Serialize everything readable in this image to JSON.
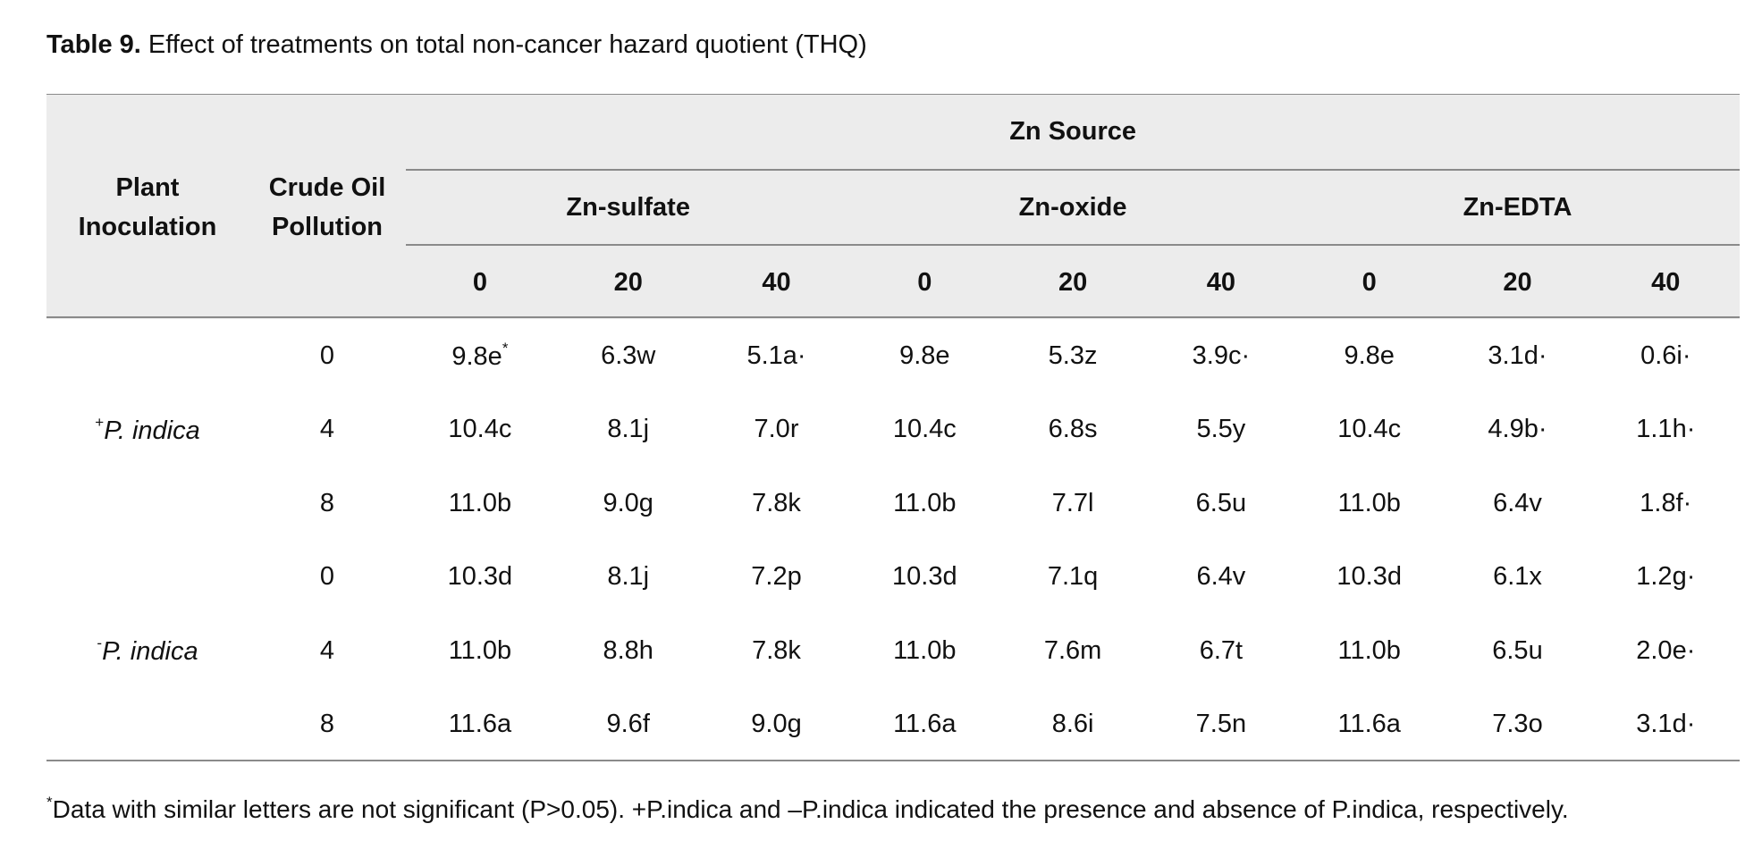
{
  "caption": {
    "label": "Table 9.",
    "text": "Effect of treatments on total non-cancer hazard quotient (THQ)"
  },
  "header": {
    "plant_inoculation": "Plant\nInoculation",
    "crude_oil_pollution": "Crude Oil\nPollution",
    "zn_source": "Zn Source",
    "sources": [
      "Zn-sulfate",
      "Zn-oxide",
      "Zn-EDTA"
    ],
    "levels": [
      "0",
      "20",
      "40",
      "0",
      "20",
      "40",
      "0",
      "20",
      "40"
    ]
  },
  "groups": [
    {
      "plant_sup": "+",
      "plant": "P. indica",
      "rows": [
        {
          "oil": "0",
          "values": [
            "9.8e",
            "6.3w",
            "5.1a·",
            "9.8e",
            "5.3z",
            "3.9c·",
            "9.8e",
            "3.1d·",
            "0.6i·"
          ],
          "first_sup": "*"
        },
        {
          "oil": "4",
          "values": [
            "10.4c",
            "8.1j",
            "7.0r",
            "10.4c",
            "6.8s",
            "5.5y",
            "10.4c",
            "4.9b·",
            "1.1h·"
          ]
        },
        {
          "oil": "8",
          "values": [
            "11.0b",
            "9.0g",
            "7.8k",
            "11.0b",
            "7.7l",
            "6.5u",
            "11.0b",
            "6.4v",
            "1.8f·"
          ]
        }
      ]
    },
    {
      "plant_sup": "-",
      "plant": "P. indica",
      "rows": [
        {
          "oil": "0",
          "values": [
            "10.3d",
            "8.1j",
            "7.2p",
            "10.3d",
            "7.1q",
            "6.4v",
            "10.3d",
            "6.1x",
            "1.2g·"
          ]
        },
        {
          "oil": "4",
          "values": [
            "11.0b",
            "8.8h",
            "7.8k",
            "11.0b",
            "7.6m",
            "6.7t",
            "11.0b",
            "6.5u",
            "2.0e·"
          ]
        },
        {
          "oil": "8",
          "values": [
            "11.6a",
            "9.6f",
            "9.0g",
            "11.6a",
            "8.6i",
            "7.5n",
            "11.6a",
            "7.3o",
            "3.1d·"
          ]
        }
      ]
    }
  ],
  "footnote": {
    "sup": "*",
    "text": "Data with similar letters are not significant (P>0.05). +P.indica and –P.indica indicated the presence and absence of P.indica, respectively."
  }
}
